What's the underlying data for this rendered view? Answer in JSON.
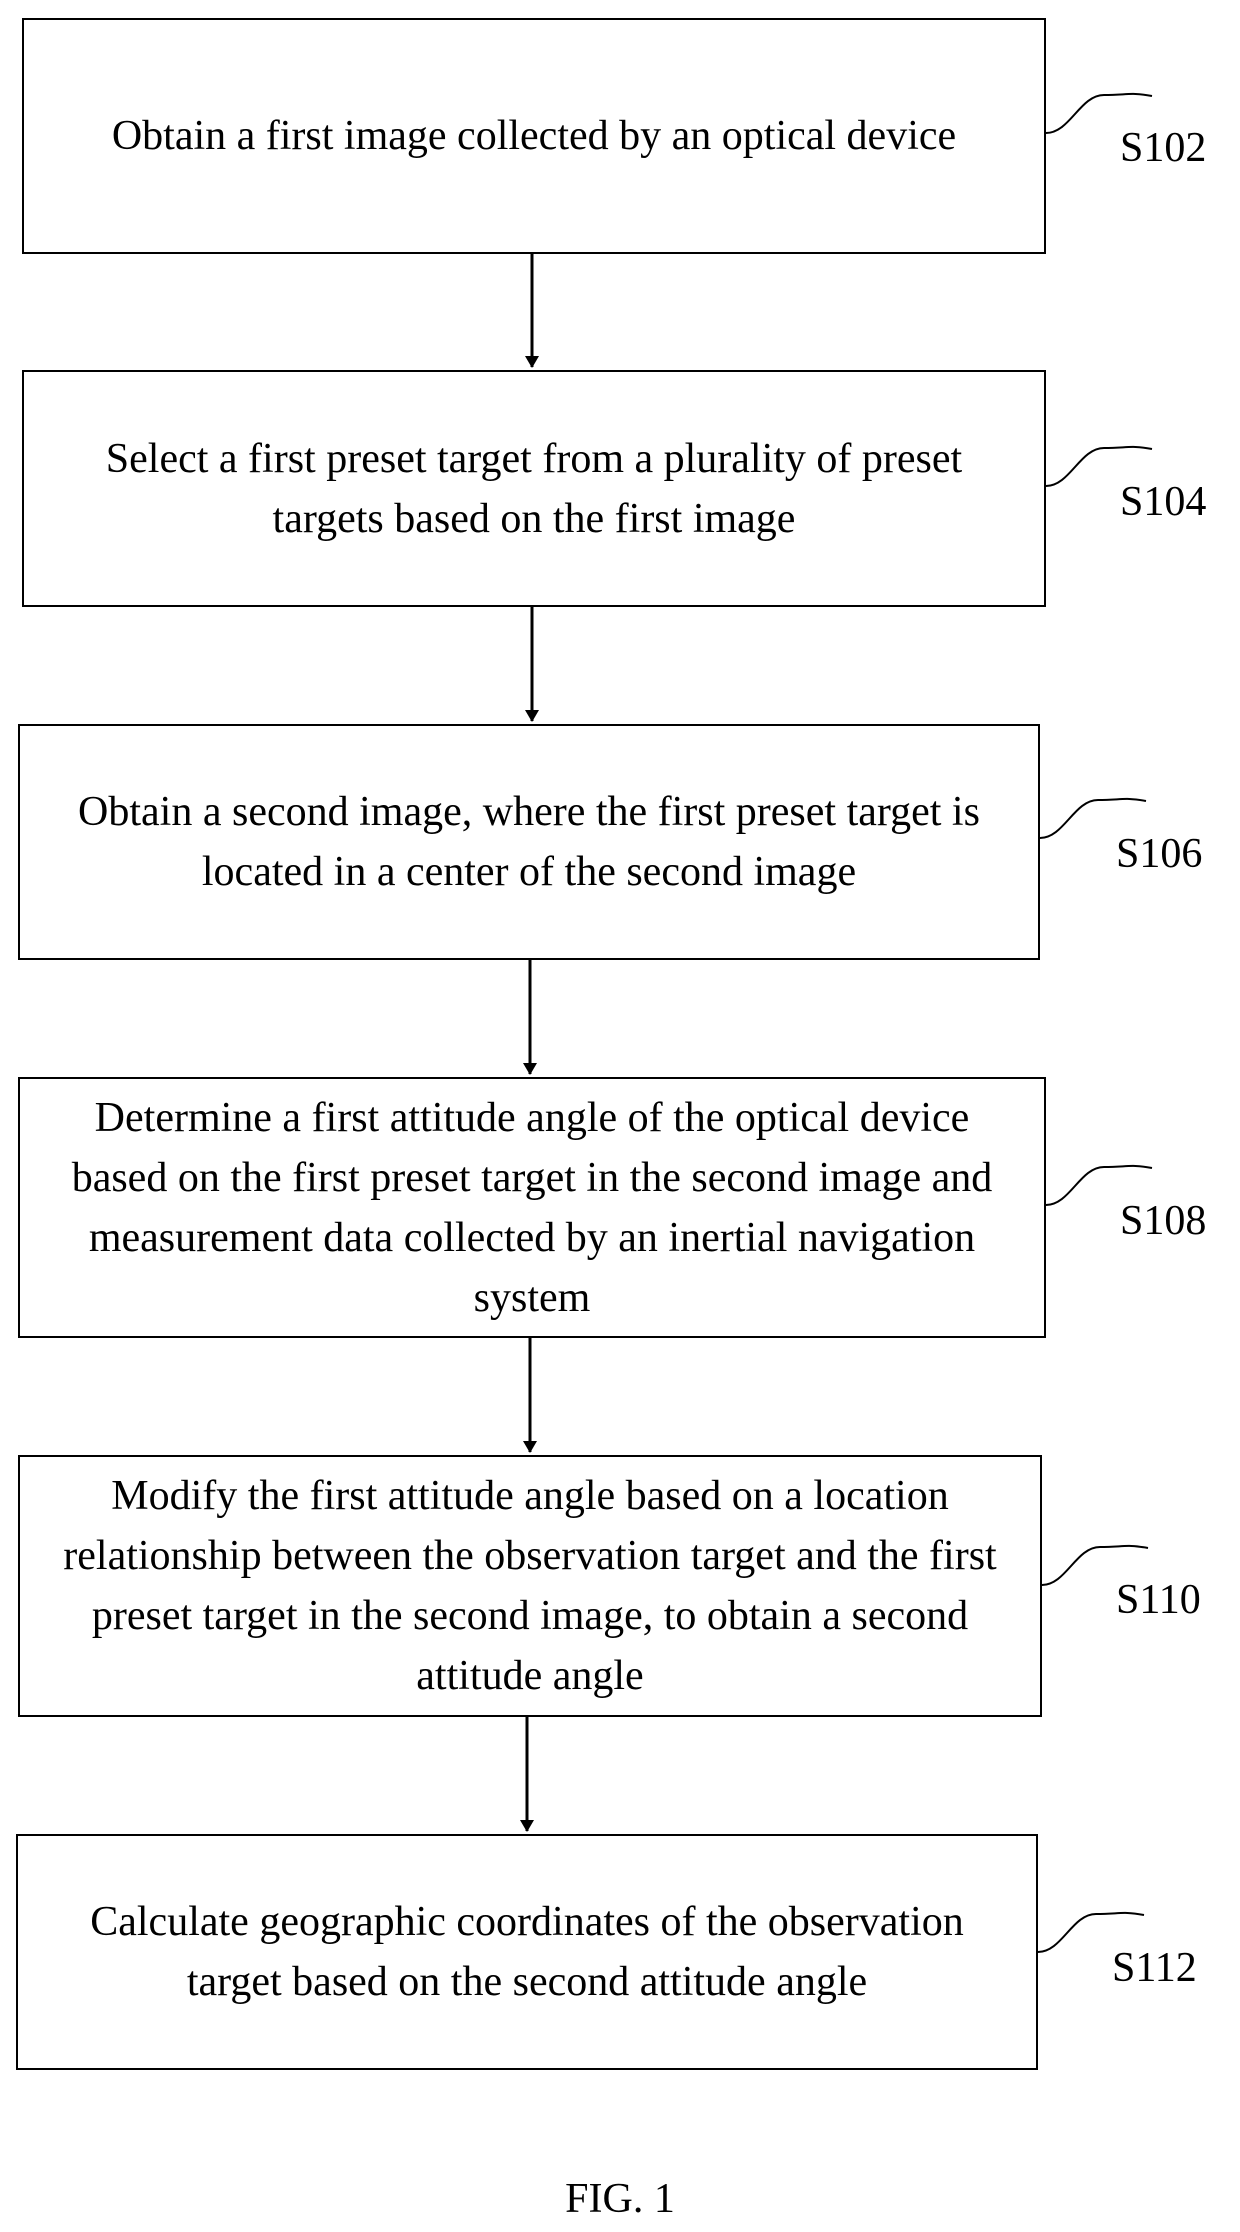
{
  "steps": [
    {
      "id": "S102",
      "label": "S102",
      "text": "Obtain a first image collected by an optical device"
    },
    {
      "id": "S104",
      "label": "S104",
      "text": "Select a first preset target from a plurality of preset targets based on the first image"
    },
    {
      "id": "S106",
      "label": "S106",
      "text": "Obtain a second image, where the first preset target is located in a center of the second image"
    },
    {
      "id": "S108",
      "label": "S108",
      "text": "Determine a first attitude angle of the optical device based on the first preset target in the second image and measurement data collected by an inertial navigation system"
    },
    {
      "id": "S110",
      "label": "S110",
      "text": "Modify the first attitude angle based on a location relationship between the observation target and the first preset target in the second image, to obtain a second attitude angle"
    },
    {
      "id": "S112",
      "label": "S112",
      "text": "Calculate geographic coordinates of the observation target based on the second attitude angle"
    }
  ],
  "caption": "FIG. 1"
}
